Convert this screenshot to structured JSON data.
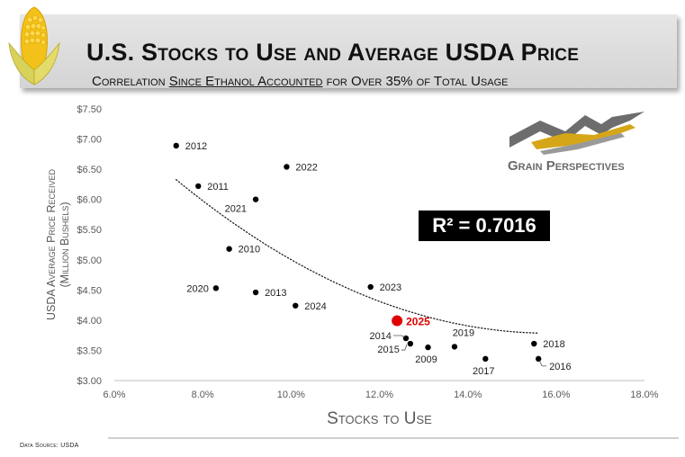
{
  "header": {
    "title": "U.S. Stocks to Use and Average USDA Price",
    "subtitle_prefix": "Correlation ",
    "subtitle_underlined": "Since Ethanol Accounted",
    "subtitle_suffix": " for Over 35% of Total Usage"
  },
  "brand": {
    "name": "Grain Perspectives"
  },
  "source_note": "Data Source: USDA",
  "colors": {
    "point": "#000000",
    "highlight": "#e00000",
    "trendline": "#222222",
    "axis_text": "#595959",
    "r2_box": "#000000",
    "r2_text": "#ffffff"
  },
  "chart_data": {
    "type": "scatter",
    "title": "U.S. Stocks to Use and Average USDA Price",
    "xlabel": "Stocks to Use",
    "ylabel": "USDA Average Price Received",
    "ylabel_sub": "(Million Bushels)",
    "xlim": [
      6.0,
      18.0
    ],
    "ylim": [
      3.0,
      7.5
    ],
    "x_ticks": [
      6.0,
      8.0,
      10.0,
      12.0,
      14.0,
      16.0,
      18.0
    ],
    "x_tick_labels": [
      "6.0%",
      "8.0%",
      "10.0%",
      "12.0%",
      "14.0%",
      "16.0%",
      "18.0%"
    ],
    "y_ticks": [
      3.0,
      3.5,
      4.0,
      4.5,
      5.0,
      5.5,
      6.0,
      6.5,
      7.0,
      7.5
    ],
    "y_tick_labels": [
      "$3.00",
      "$3.50",
      "$4.00",
      "$4.50",
      "$5.00",
      "$5.50",
      "$6.00",
      "$6.50",
      "$7.00",
      "$7.50"
    ],
    "grid": false,
    "points": [
      {
        "label": "2012",
        "x": 7.4,
        "y": 6.89,
        "pos": "right"
      },
      {
        "label": "2011",
        "x": 7.9,
        "y": 6.22,
        "pos": "right"
      },
      {
        "label": "2022",
        "x": 9.9,
        "y": 6.54,
        "pos": "right"
      },
      {
        "label": "2021",
        "x": 9.2,
        "y": 6.0,
        "pos": "below-left"
      },
      {
        "label": "2010",
        "x": 8.6,
        "y": 5.18,
        "pos": "right"
      },
      {
        "label": "2020",
        "x": 8.3,
        "y": 4.53,
        "pos": "left"
      },
      {
        "label": "2013",
        "x": 9.2,
        "y": 4.46,
        "pos": "right"
      },
      {
        "label": "2024",
        "x": 10.1,
        "y": 4.24,
        "pos": "right"
      },
      {
        "label": "2023",
        "x": 11.8,
        "y": 4.55,
        "pos": "right"
      },
      {
        "label": "2014",
        "x": 12.6,
        "y": 3.7,
        "pos": "left-leader"
      },
      {
        "label": "2015",
        "x": 12.7,
        "y": 3.61,
        "pos": "left-leader-low"
      },
      {
        "label": "2009",
        "x": 13.1,
        "y": 3.55,
        "pos": "below"
      },
      {
        "label": "2019",
        "x": 13.7,
        "y": 3.56,
        "pos": "above"
      },
      {
        "label": "2017",
        "x": 14.4,
        "y": 3.36,
        "pos": "below"
      },
      {
        "label": "2018",
        "x": 15.5,
        "y": 3.61,
        "pos": "right"
      },
      {
        "label": "2016",
        "x": 15.6,
        "y": 3.36,
        "pos": "right-leader"
      },
      {
        "label": "2025",
        "x": 12.4,
        "y": 3.99,
        "pos": "right",
        "highlight": true
      }
    ],
    "trendline": {
      "type": "polynomial",
      "x_range": [
        7.4,
        15.6
      ],
      "coefficients": [
        12.735,
        -1.1295,
        0.03563
      ],
      "style": "dotted"
    },
    "annotations": [
      {
        "text": "R² = 0.7016",
        "placement": "center-right"
      }
    ]
  }
}
